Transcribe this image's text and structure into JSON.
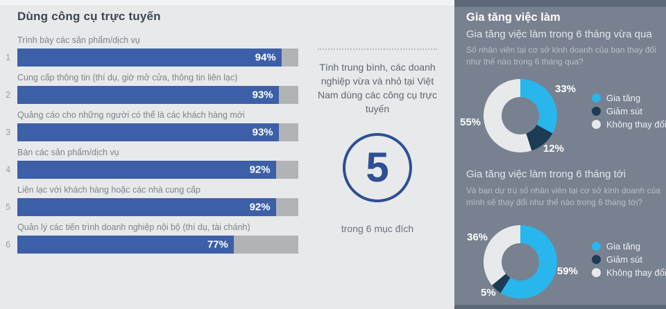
{
  "colors": {
    "bar_blue": "#3c5fa7",
    "bar_track": "#b1b4b6",
    "circle_blue": "#2d4f93",
    "panel_bg": "#78818f",
    "accent_cyan": "#29b6ec",
    "accent_navy": "#1c3c55",
    "accent_gray": "#e8e9ea"
  },
  "middle": {
    "summary": "Tính trung bình, các doanh nghiệp vừa và nhỏ tại Việt Nam dùng các công cụ trực tuyến",
    "big_number": "5",
    "caption": "trong 6 mục đích"
  },
  "right": {
    "panel_title": "Gia tăng việc làm"
  },
  "chart_data": [
    {
      "type": "bar",
      "orientation": "horizontal",
      "title": "Dùng công cụ trực tuyến",
      "categories": [
        "Trình bày các sản phẩm/dịch vụ",
        "Cung cấp thông tin (thí dụ, giờ mở cửa, thông tin liên lạc)",
        "Quảng cáo cho những người có thể là các khách hàng mới",
        "Bán các sản phẩm/dịch vụ",
        "Liên lạc với khách hàng hoặc các nhà cung cấp",
        "Quản lý các tiến trình doanh nghiệp nội bộ (thí dụ, tài chánh)"
      ],
      "values": [
        94,
        93,
        93,
        92,
        92,
        77
      ],
      "unit": "%",
      "xlim": [
        0,
        100
      ],
      "row_numbers": [
        "1",
        "2",
        "3",
        "4",
        "5",
        "6"
      ]
    },
    {
      "type": "pie",
      "title": "Gia tăng việc làm trong 6 tháng vừa qua",
      "subtitle": "Số nhân viên tại cơ sở kinh doanh của bạn thay đổi như thế nào trong 6 tháng qua?",
      "labels": [
        "Gia tăng",
        "Giảm sút",
        "Không thay đổi"
      ],
      "values": [
        33,
        12,
        55
      ],
      "unit": "%",
      "colors": [
        "#29b6ec",
        "#1c3c55",
        "#e8e9ea"
      ],
      "legend_position": "right",
      "donut": true
    },
    {
      "type": "pie",
      "title": "Gia tăng việc làm trong 6 tháng tới",
      "subtitle": "Và bạn dự trù số nhân viên tại cơ sở kinh doanh của mình sẽ thay đổi như thế nào trong 6 tháng tới?",
      "labels": [
        "Gia tăng",
        "Giảm sút",
        "Không thay đổi"
      ],
      "values": [
        59,
        5,
        36
      ],
      "unit": "%",
      "colors": [
        "#29b6ec",
        "#1c3c55",
        "#e8e9ea"
      ],
      "legend_position": "right",
      "donut": true
    }
  ]
}
